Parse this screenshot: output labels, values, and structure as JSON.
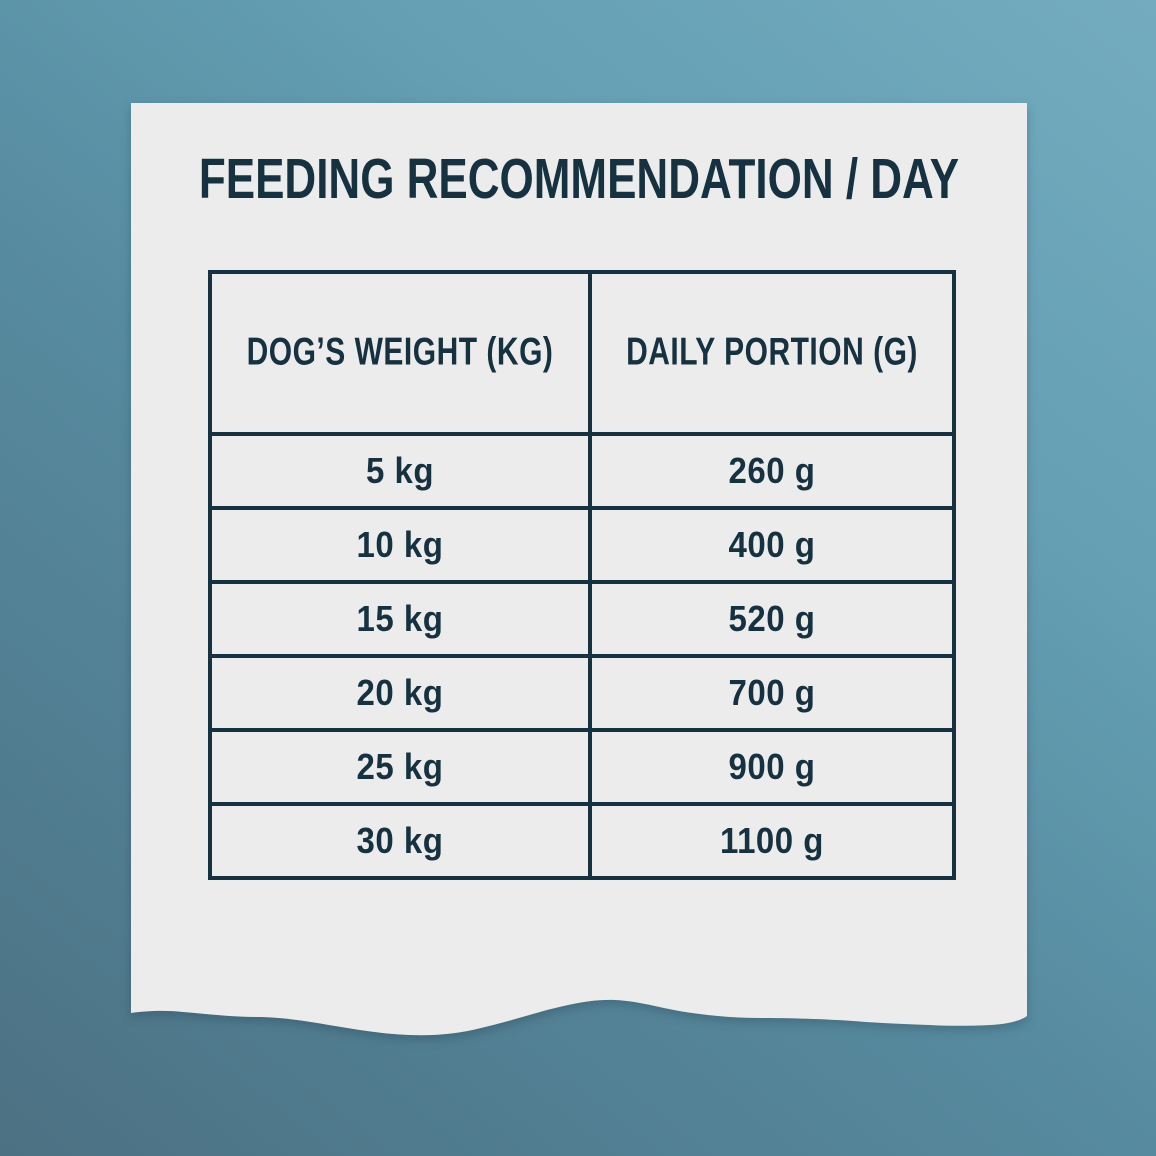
{
  "title": "FEEDING RECOMMENDATION / DAY",
  "colors": {
    "text_dark_teal": "#163240",
    "paper": "#ECECEC",
    "background_top": "#74ABBF",
    "background_bottom": "#4C7183"
  },
  "table": {
    "headers": {
      "weight": "DOG’S WEIGHT (KG)",
      "portion": "DAILY PORTION (G)"
    },
    "rows": [
      {
        "weight": "5 kg",
        "portion": "260 g"
      },
      {
        "weight": "10 kg",
        "portion": "400 g"
      },
      {
        "weight": "15 kg",
        "portion": "520 g"
      },
      {
        "weight": "20 kg",
        "portion": "700 g"
      },
      {
        "weight": "25 kg",
        "portion": "900 g"
      },
      {
        "weight": "30 kg",
        "portion": "1100 g"
      }
    ]
  }
}
